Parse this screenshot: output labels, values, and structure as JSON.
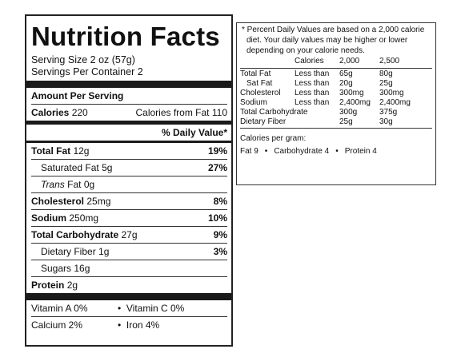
{
  "label": {
    "title": "Nutrition Facts",
    "serving_size": "Serving Size  2  oz  (57g)",
    "servings_per_container": "Servings Per Container  2",
    "amount_per_serving": "Amount Per Serving",
    "calories_label": "Calories",
    "calories_value": "220",
    "calories_from_fat_label": "Calories from Fat",
    "calories_from_fat_value": "110",
    "daily_value_header": "% Daily Value*",
    "nutrients": [
      {
        "name": "Total Fat",
        "amount": "12g",
        "pct": "19%"
      },
      {
        "name": "Saturated Fat",
        "amount": "5g",
        "pct": "27%"
      },
      {
        "name": "Trans",
        "amount": "Fat 0g",
        "pct": ""
      },
      {
        "name": "Cholesterol",
        "amount": "25mg",
        "pct": "8%"
      },
      {
        "name": "Sodium",
        "amount": "250mg",
        "pct": "10%"
      },
      {
        "name": "Total Carbohydrate",
        "amount": "27g",
        "pct": "9%"
      },
      {
        "name": "Dietary Fiber",
        "amount": "1g",
        "pct": "3%"
      },
      {
        "name": "Sugars",
        "amount": "16g",
        "pct": ""
      },
      {
        "name": "Protein",
        "amount": "2g",
        "pct": ""
      }
    ],
    "vitamins": [
      {
        "left": "Vitamin A  0%",
        "right": "Vitamin C 0%"
      },
      {
        "left": "Calcium 2%",
        "right": "Iron  4%"
      }
    ],
    "bullet": "•"
  },
  "footnote": {
    "note": "* Percent Daily Values are based on a 2,000 calorie diet. Your daily values may be higher or lower depending on your calorie needs.",
    "header": [
      "",
      "Calories",
      "2,000",
      "2,500"
    ],
    "rows": [
      [
        "Total Fat",
        "Less than",
        "65g",
        "80g"
      ],
      [
        "Sat Fat",
        "Less than",
        "20g",
        "25g"
      ],
      [
        "Cholesterol",
        "Less than",
        "300mg",
        "300mg"
      ],
      [
        "Sodium",
        "Less than",
        "2,400mg",
        "2,400mg"
      ],
      [
        "Total Carbohydrate",
        "",
        "300g",
        "375g"
      ],
      [
        "Dietary Fiber",
        "",
        "25g",
        "30g"
      ]
    ],
    "calories_per_gram_label": "Calories per gram:",
    "fat": "Fat 9",
    "carbohydrate": "Carbohydrate 4",
    "protein": "Protein 4",
    "bullet": "•"
  }
}
